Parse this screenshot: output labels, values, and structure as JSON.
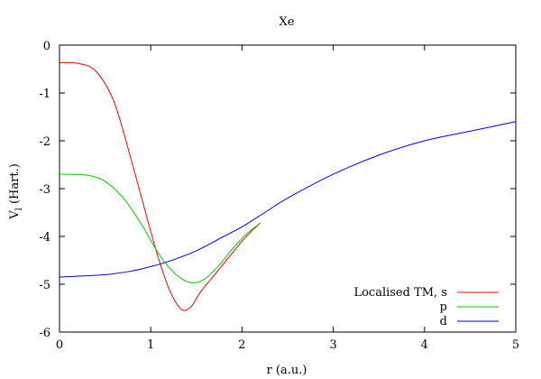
{
  "chart_data": {
    "type": "line",
    "title": "Xe",
    "xlabel": "r (a.u.)",
    "ylabel_main": "V",
    "ylabel_sub": "l",
    "ylabel_unit": " (Hart.)",
    "xlim": [
      0,
      5
    ],
    "ylim": [
      -6,
      0
    ],
    "x_ticks": [
      0,
      1,
      2,
      3,
      4,
      5
    ],
    "y_ticks": [
      0,
      -1,
      -2,
      -3,
      -4,
      -5,
      -6
    ],
    "grid": false,
    "legend_position": "bottom-right",
    "series": [
      {
        "name": "Localised TM, s",
        "color": "#ff0000",
        "x": [
          0,
          0.2,
          0.4,
          0.6,
          0.8,
          1.0,
          1.1,
          1.2,
          1.3,
          1.37,
          1.45,
          1.55,
          1.7,
          1.85,
          2.0,
          2.1,
          2.2
        ],
        "y": [
          -0.37,
          -0.38,
          -0.55,
          -1.2,
          -2.5,
          -3.9,
          -4.55,
          -5.1,
          -5.45,
          -5.55,
          -5.45,
          -5.15,
          -4.8,
          -4.45,
          -4.1,
          -3.9,
          -3.72
        ]
      },
      {
        "name": "p",
        "color": "#00cc00",
        "x": [
          0,
          0.3,
          0.5,
          0.7,
          0.9,
          1.05,
          1.2,
          1.35,
          1.48,
          1.6,
          1.75,
          1.9,
          2.05,
          2.2
        ],
        "y": [
          -2.7,
          -2.72,
          -2.85,
          -3.2,
          -3.75,
          -4.25,
          -4.65,
          -4.9,
          -4.97,
          -4.88,
          -4.6,
          -4.25,
          -3.95,
          -3.72
        ]
      },
      {
        "name": "d",
        "color": "#0000ff",
        "x": [
          0,
          0.5,
          0.8,
          1.0,
          1.2,
          1.5,
          1.8,
          2.0,
          2.25,
          2.5,
          3.0,
          3.5,
          4.0,
          4.5,
          5.0
        ],
        "y": [
          -4.85,
          -4.8,
          -4.72,
          -4.63,
          -4.52,
          -4.3,
          -4.0,
          -3.8,
          -3.5,
          -3.2,
          -2.7,
          -2.3,
          -2.0,
          -1.8,
          -1.6
        ]
      }
    ]
  }
}
